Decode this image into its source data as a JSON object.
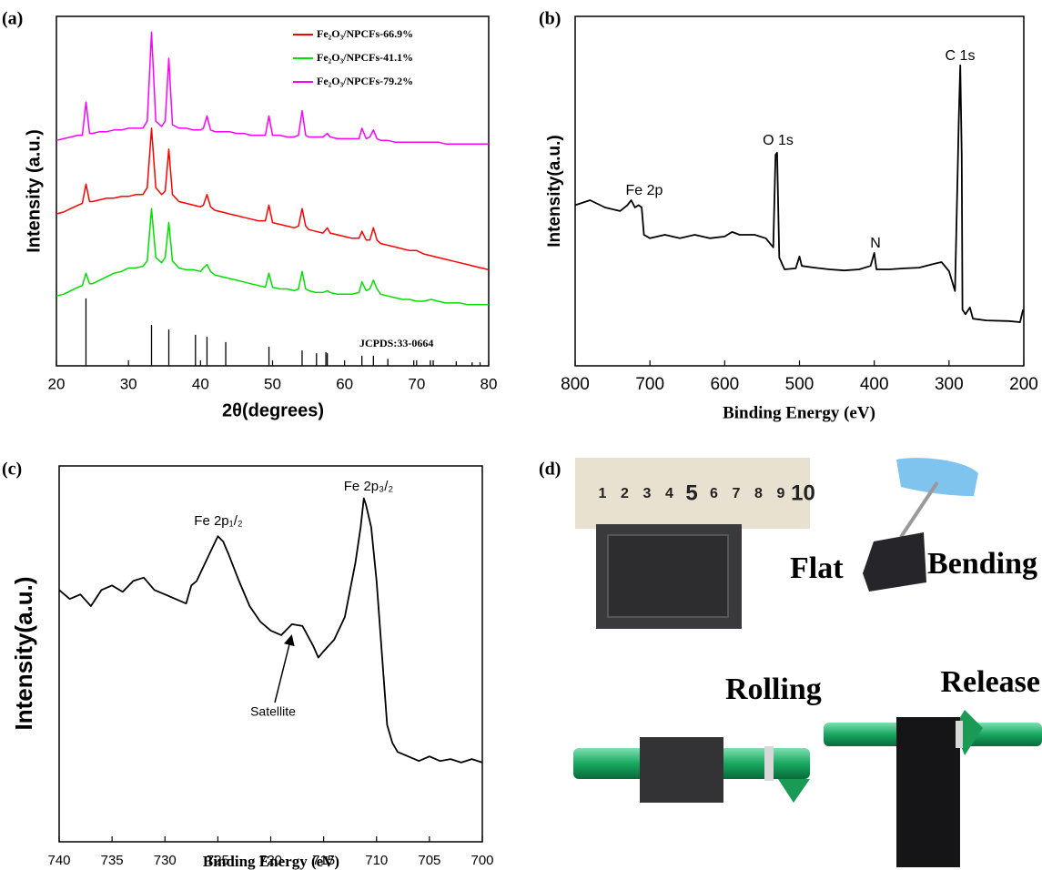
{
  "chart_data": [
    {
      "type": "line",
      "label": "(a)",
      "x_label": "2θ(degrees)",
      "y_label": "Intensity (a.u.)",
      "xlim": [
        20,
        80
      ],
      "xticks": [
        20,
        30,
        40,
        50,
        60,
        70,
        80
      ],
      "ylim": [
        0,
        100
      ],
      "annotations": [
        "JCPDS:33-0664"
      ],
      "x": [
        20,
        21,
        22,
        23,
        23.6,
        24.1,
        24.6,
        25,
        26,
        27,
        28,
        29,
        30,
        31,
        32,
        32.6,
        33.2,
        33.8,
        34.6,
        35.1,
        35.6,
        36.1,
        37,
        38,
        39,
        40,
        40.4,
        40.9,
        41.4,
        42,
        43,
        44,
        45,
        46,
        47,
        48,
        49,
        49.5,
        50,
        51,
        52,
        53,
        53.6,
        54.1,
        54.6,
        55,
        56,
        57,
        57.6,
        58,
        59,
        60,
        61,
        62,
        62.4,
        63,
        63.5,
        64,
        64.5,
        65,
        66,
        67,
        68,
        69,
        70,
        71,
        72,
        73,
        74,
        75,
        76,
        77,
        78,
        79,
        80
      ],
      "series": [
        {
          "name": "Fe₂O₃/NPCFs-66.9%",
          "color": "#ff0000",
          "values": [
            43.5,
            44,
            45,
            46,
            46.5,
            52,
            47,
            47,
            47.5,
            48,
            48,
            48.5,
            48.5,
            49,
            49,
            51,
            68,
            51,
            49,
            50,
            62,
            49,
            47,
            46.5,
            46,
            45.5,
            46,
            49,
            45.5,
            44.5,
            44,
            43.5,
            43,
            42.5,
            42,
            41.5,
            41.5,
            46,
            41,
            40.5,
            40,
            39.5,
            40,
            45,
            40,
            39,
            38.5,
            38,
            39.5,
            38,
            37.5,
            37,
            36.5,
            36.5,
            38.5,
            36,
            36,
            39.5,
            36,
            35,
            34.5,
            34,
            33.5,
            33,
            33,
            32,
            31.5,
            31,
            30.5,
            30,
            29.5,
            29,
            28.5,
            28,
            27.5
          ]
        },
        {
          "name": "Fe₂O₃/NPCFs-41.1%",
          "color": "#00e000",
          "values": [
            20,
            20.5,
            21.5,
            22.5,
            23,
            26.5,
            23.5,
            23.5,
            24.5,
            25.5,
            26.5,
            27,
            28,
            28,
            28.5,
            30,
            45,
            31,
            29.5,
            31,
            41,
            30,
            28,
            27.5,
            27.5,
            27,
            28,
            29,
            27,
            26,
            25.5,
            25,
            24.5,
            24,
            23.5,
            23,
            22.5,
            26.5,
            22.5,
            22,
            22,
            21.5,
            22,
            27,
            22,
            21.5,
            21,
            21,
            21.5,
            21,
            20.5,
            20.5,
            20.5,
            21,
            24,
            21.5,
            22,
            24.5,
            22,
            20.5,
            20,
            19.5,
            19,
            19,
            18.5,
            18.5,
            19,
            18.5,
            18,
            18,
            18,
            17.5,
            17.5,
            17.5,
            17.5
          ]
        },
        {
          "name": "Fe₂O₃/NPCFs-79.2%",
          "color": "#ff00ff",
          "values": [
            64.5,
            65,
            65.5,
            66,
            66,
            75.5,
            66.5,
            66.5,
            67,
            67,
            67.5,
            67.5,
            68,
            68,
            68,
            70,
            95.5,
            70,
            68.5,
            70,
            88,
            69,
            68,
            68,
            67.5,
            67.5,
            68,
            71.5,
            67.5,
            67,
            67,
            67,
            66.5,
            66.5,
            66,
            66,
            66,
            71.5,
            66,
            66,
            65.5,
            65.5,
            66,
            73,
            66,
            65.5,
            65.5,
            65.5,
            66.5,
            65.5,
            65,
            65,
            65,
            65,
            68,
            65,
            65.5,
            67.5,
            65,
            64.5,
            64.5,
            64,
            64,
            64,
            64,
            64,
            64,
            64,
            63.5,
            63.5,
            63.5,
            63.5,
            63.5,
            63.5,
            63.5
          ]
        }
      ],
      "reference": {
        "color": "#000000",
        "x": [
          24.1,
          33.2,
          35.6,
          39.3,
          40.9,
          43.5,
          49.5,
          54.1,
          56.1,
          57.4,
          57.6,
          62.4,
          64,
          66,
          69.6,
          71.9,
          72.3,
          75.5,
          77.7,
          78.8
        ],
        "values": [
          19.3,
          11.7,
          10.4,
          8.9,
          8.3,
          6.8,
          5.5,
          4.4,
          3.6,
          3.9,
          3.6,
          2.9,
          2.9,
          2,
          1.6,
          1.6,
          1.6,
          1.3,
          1,
          1
        ]
      }
    },
    {
      "type": "line",
      "label": "(b)",
      "x_label": "Binding Energy (eV)",
      "y_label": "Intensity(a.u.)",
      "xlim": [
        800,
        200
      ],
      "xticks": [
        800,
        700,
        600,
        500,
        400,
        300,
        200
      ],
      "ylim": [
        0,
        100
      ],
      "color": "#000000",
      "annotations": [
        "Fe 2p",
        "O 1s",
        "N",
        "C 1s"
      ],
      "x": [
        800,
        780,
        760,
        740,
        730,
        725,
        720,
        715,
        711,
        708,
        700,
        680,
        660,
        640,
        620,
        600,
        590,
        580,
        560,
        545,
        535,
        532,
        530,
        527,
        520,
        505,
        500,
        497,
        480,
        460,
        440,
        420,
        405,
        400,
        397,
        380,
        360,
        340,
        320,
        310,
        300,
        292,
        288,
        287,
        285,
        283,
        282,
        278,
        272,
        268,
        250,
        220,
        205,
        201
      ],
      "values": [
        46,
        47.4,
        45.3,
        44.3,
        46,
        47.4,
        45.3,
        46,
        45.3,
        37.5,
        36.5,
        37.5,
        36.5,
        37.5,
        36.5,
        37,
        38.3,
        37.5,
        37.5,
        36.5,
        33.9,
        60.4,
        61,
        31,
        27.6,
        27.9,
        31.3,
        28.6,
        28.1,
        27.6,
        27.3,
        27.6,
        28.6,
        32.3,
        27.6,
        27.6,
        27.9,
        28.1,
        29.2,
        29.7,
        27.1,
        21.4,
        60,
        70,
        86,
        60,
        16.1,
        14.8,
        16.7,
        13.5,
        13,
        12.8,
        12.5,
        16.1
      ]
    },
    {
      "type": "line",
      "label": "(c)",
      "x_label": "Binding Energy (eV)",
      "y_label": "Intensity(a.u.)",
      "xlim": [
        740,
        700
      ],
      "xticks": [
        740,
        735,
        730,
        725,
        720,
        715,
        710,
        705,
        700
      ],
      "ylim": [
        0,
        100
      ],
      "color": "#000000",
      "annotations": [
        "Fe 2p₁/₂",
        "Fe 2p₃/₂",
        "Satellite"
      ],
      "x": [
        740,
        739,
        738,
        737,
        736,
        735,
        734,
        733,
        732,
        731,
        730,
        729,
        728,
        727.5,
        727,
        726,
        725,
        724.5,
        724,
        723,
        722,
        721,
        720,
        719,
        718,
        717,
        716,
        715.5,
        715,
        714,
        713,
        712,
        711.5,
        711.2,
        711,
        710.5,
        710,
        709.5,
        709,
        708.5,
        708,
        707,
        706,
        705,
        704,
        703,
        702,
        701,
        700
      ],
      "values": [
        67,
        64.6,
        65.8,
        62.7,
        67,
        68.2,
        66.5,
        69.4,
        70.3,
        67,
        65.8,
        64.6,
        63.4,
        68.2,
        69.4,
        75.4,
        81.3,
        79.9,
        76.6,
        69.4,
        62.7,
        58.6,
        56.2,
        55,
        57.9,
        57.4,
        52.2,
        49,
        50.7,
        53.8,
        59.8,
        74.2,
        83.7,
        91.4,
        89.7,
        83.7,
        69.4,
        50.2,
        31.1,
        26.3,
        23.9,
        22.7,
        21.5,
        22.7,
        21.5,
        22,
        21.1,
        22,
        21.1
      ]
    },
    {
      "type": "image",
      "label": "(d)",
      "annotations": [
        "Flat",
        "Bending",
        "Rolling",
        "Release"
      ],
      "ruler_labels": [
        "1",
        "2",
        "3",
        "4",
        "5",
        "6",
        "7",
        "8",
        "9",
        "10"
      ]
    }
  ]
}
